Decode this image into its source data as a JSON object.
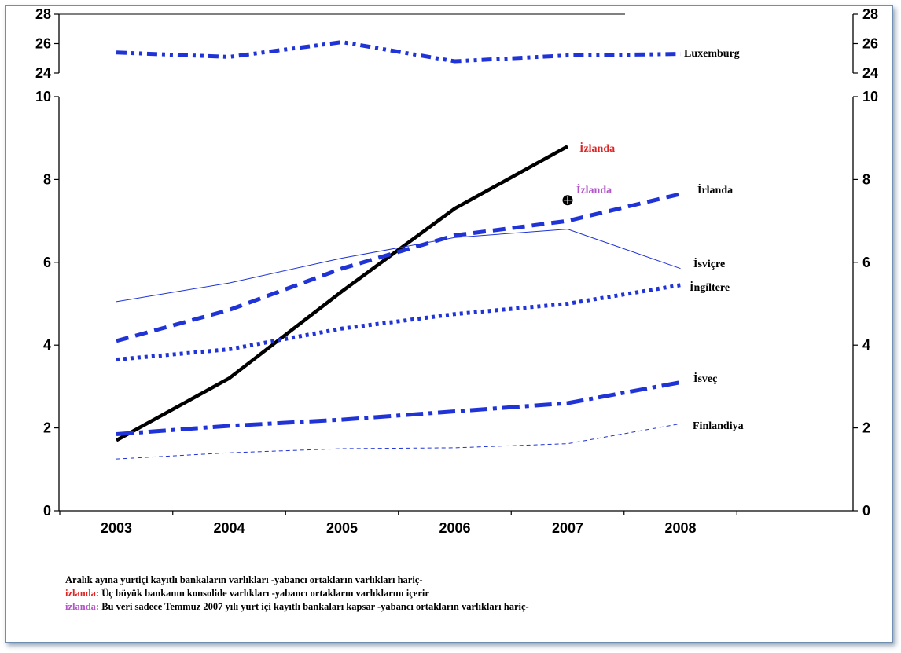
{
  "chart_data": {
    "type": "line",
    "x": [
      2003,
      2004,
      2005,
      2006,
      2007,
      2008
    ],
    "x_tick_labels": [
      "2003",
      "2004",
      "2005",
      "2006",
      "2007",
      "2008"
    ],
    "y_ticks_lower": [
      "0",
      "2",
      "4",
      "6",
      "8",
      "10"
    ],
    "y_ticks_upper": [
      "24",
      "26",
      "28"
    ],
    "ylim_lower": [
      0,
      10
    ],
    "ylim_upper": [
      24,
      28
    ],
    "axis_break": true,
    "secondary_y_axis": "mirror",
    "grid": false,
    "series": [
      {
        "name": "Luxemburg",
        "panel": "upper",
        "style": "dash-dot-dot",
        "color": "#1f33d6",
        "x": [
          2003,
          2004,
          2005,
          2006,
          2007,
          2008
        ],
        "values": [
          25.4,
          25.1,
          26.1,
          24.8,
          25.2,
          25.3
        ]
      },
      {
        "name": "İzlanda",
        "panel": "lower",
        "style": "solid-thick",
        "color": "#000000",
        "x": [
          2003,
          2004,
          2005,
          2006,
          2007
        ],
        "values": [
          1.7,
          3.2,
          5.3,
          7.3,
          8.8
        ]
      },
      {
        "name": "İzlanda",
        "panel": "lower",
        "style": "marker",
        "color": "#000000",
        "x": [
          2007
        ],
        "values": [
          7.5
        ]
      },
      {
        "name": "İrlanda",
        "panel": "lower",
        "style": "dashed",
        "color": "#1f33d6",
        "x": [
          2003,
          2004,
          2005,
          2006,
          2007,
          2008
        ],
        "values": [
          4.1,
          4.85,
          5.85,
          6.65,
          7.0,
          7.65
        ]
      },
      {
        "name": "İsviçre",
        "panel": "lower",
        "style": "thin-solid",
        "color": "#1f33d6",
        "x": [
          2003,
          2004,
          2005,
          2006,
          2007,
          2008
        ],
        "values": [
          5.05,
          5.5,
          6.1,
          6.6,
          6.8,
          5.85
        ]
      },
      {
        "name": "İngiltere",
        "panel": "lower",
        "style": "dotted",
        "color": "#1f33d6",
        "x": [
          2003,
          2004,
          2005,
          2006,
          2007,
          2008
        ],
        "values": [
          3.65,
          3.9,
          4.4,
          4.75,
          5.0,
          5.45
        ]
      },
      {
        "name": "İsveç",
        "panel": "lower",
        "style": "dash-dot",
        "color": "#1f33d6",
        "x": [
          2003,
          2004,
          2005,
          2006,
          2007,
          2008
        ],
        "values": [
          1.85,
          2.05,
          2.2,
          2.4,
          2.6,
          3.1
        ]
      },
      {
        "name": "Finlandiya",
        "panel": "lower",
        "style": "thin-dashed",
        "color": "#1f33d6",
        "x": [
          2003,
          2004,
          2005,
          2006,
          2007,
          2008
        ],
        "values": [
          1.25,
          1.4,
          1.5,
          1.52,
          1.62,
          2.1
        ]
      }
    ],
    "series_labels": [
      {
        "text": "Luxemburg",
        "color": "#000000"
      },
      {
        "text": "İzlanda",
        "color": "#e02424"
      },
      {
        "text": "İzlanda",
        "color": "#b155c8"
      },
      {
        "text": "İrlanda",
        "color": "#000000"
      },
      {
        "text": "İsviçre",
        "color": "#000000"
      },
      {
        "text": "İngiltere",
        "color": "#000000"
      },
      {
        "text": "İsveç",
        "color": "#000000"
      },
      {
        "text": "Finlandiya",
        "color": "#000000"
      }
    ]
  },
  "notes": {
    "line1": "Aralık ayına yurtiçi kayıtlı bankaların varlıkları -yabancı ortakların varlıkları hariç-",
    "line2_prefix": "izlanda:",
    "line2_text": " Üç büyük bankanın konsolide varlıkları -yabancı ortakların varlıklarını içerir",
    "line3_prefix": "izlanda:",
    "line3_text": " Bu veri sadece Temmuz 2007 yılı yurt içi kayıtlı bankaları kapsar -yabancı ortakların varlıkları hariç-",
    "color_red": "#e02424",
    "color_purple": "#b155c8"
  }
}
